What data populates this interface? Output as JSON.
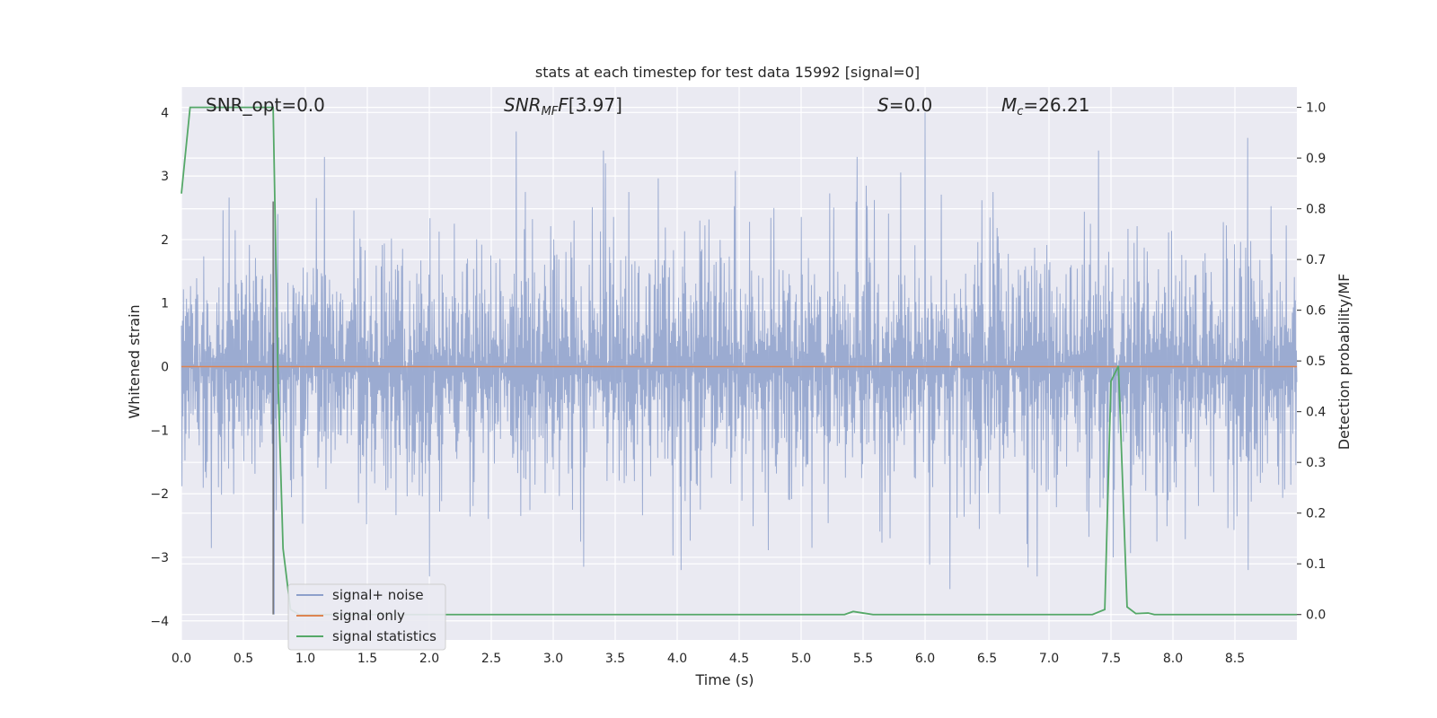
{
  "chart_data": {
    "type": "line",
    "title": "stats at each timestep for test data 15992 [signal=0]",
    "xlabel": "Time (s)",
    "ylabel_left": "Whitened strain",
    "ylabel_right": "Detection probability/MF",
    "xlim": [
      0,
      9.0
    ],
    "ylim_left": [
      -4.3,
      4.4
    ],
    "ylim_right": [
      -0.05,
      1.04
    ],
    "xticks": [
      0.0,
      0.5,
      1.0,
      1.5,
      2.0,
      2.5,
      3.0,
      3.5,
      4.0,
      4.5,
      5.0,
      5.5,
      6.0,
      6.5,
      7.0,
      7.5,
      8.0,
      8.5
    ],
    "xtick_labels": [
      "0.0",
      "0.5",
      "1.0",
      "1.5",
      "2.0",
      "2.5",
      "3.0",
      "3.5",
      "4.0",
      "4.5",
      "5.0",
      "5.5",
      "6.0",
      "6.5",
      "7.0",
      "7.5",
      "8.0",
      "8.5"
    ],
    "yticks_left": [
      -4,
      -3,
      -2,
      -1,
      0,
      1,
      2,
      3,
      4
    ],
    "ytick_labels_left": [
      "−4",
      "−3",
      "−2",
      "−1",
      "0",
      "1",
      "2",
      "3",
      "4"
    ],
    "yticks_right": [
      0.0,
      0.1,
      0.2,
      0.3,
      0.4,
      0.5,
      0.6,
      0.7,
      0.8,
      0.9,
      1.0
    ],
    "ytick_labels_right": [
      "0.0",
      "0.1",
      "0.2",
      "0.3",
      "0.4",
      "0.5",
      "0.6",
      "0.7",
      "0.8",
      "0.9",
      "1.0"
    ],
    "grid": true,
    "legend_position": "lower-left",
    "annotations": {
      "snr_opt": "SNR_opt=0.0",
      "snr_mf": "[3.97]",
      "s_value": "=0.0",
      "mc_value": "=26.21"
    },
    "series": [
      {
        "name": "signal+ noise",
        "color": "#8da0cb",
        "description_type": "noise",
        "x_range": [
          0,
          9.0
        ],
        "amplitude_typical": 1.5,
        "peaks": [
          {
            "x": 0.75,
            "y": 2.6
          },
          {
            "x": 0.75,
            "y": -3.9
          },
          {
            "x": 2.7,
            "y": 3.7
          },
          {
            "x": 5.45,
            "y": 3.3
          },
          {
            "x": 6.0,
            "y": 4.0
          },
          {
            "x": 8.6,
            "y": 3.6
          },
          {
            "x": 1.15,
            "y": 3.3
          },
          {
            "x": 3.4,
            "y": 3.4
          },
          {
            "x": 6.2,
            "y": -3.5
          },
          {
            "x": 7.4,
            "y": 3.4
          },
          {
            "x": 2.0,
            "y": -3.3
          },
          {
            "x": 6.9,
            "y": -3.3
          }
        ]
      },
      {
        "name": "signal only",
        "color": "#dd8452",
        "x": [
          0,
          9.0
        ],
        "y": [
          0,
          0
        ]
      },
      {
        "name": "signal statistics",
        "color": "#55a868",
        "axis": "right",
        "x": [
          0.0,
          0.07,
          0.12,
          0.2,
          0.3,
          0.4,
          0.5,
          0.6,
          0.7,
          0.74,
          0.78,
          0.82,
          0.88,
          0.95,
          1.0,
          2.0,
          3.0,
          4.0,
          5.0,
          5.35,
          5.42,
          5.5,
          5.58,
          6.0,
          7.0,
          7.35,
          7.45,
          7.5,
          7.56,
          7.63,
          7.7,
          7.8,
          7.85,
          8.0,
          8.5,
          9.0
        ],
        "y": [
          0.83,
          1.0,
          1.0,
          1.0,
          1.0,
          1.0,
          1.0,
          1.0,
          1.0,
          1.0,
          0.46,
          0.13,
          0.01,
          0.0,
          0.0,
          0.0,
          0.0,
          0.0,
          0.0,
          0.0,
          0.006,
          0.003,
          0.0,
          0.0,
          0.0,
          0.0,
          0.01,
          0.46,
          0.49,
          0.015,
          0.002,
          0.003,
          0.0,
          0.0,
          0.0,
          0.0
        ]
      }
    ]
  }
}
